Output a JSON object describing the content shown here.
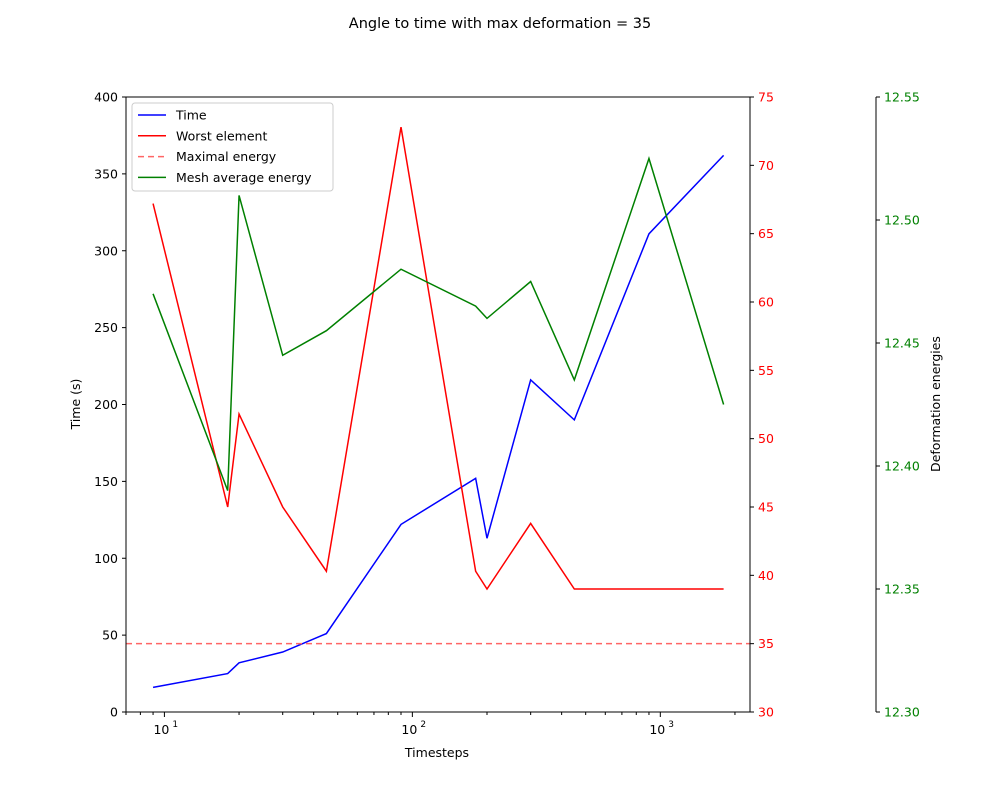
{
  "chart_data": {
    "type": "line",
    "title": "Angle to time with max deformation = 35",
    "xlabel": "Timesteps",
    "xscale": "log",
    "xlim": [
      7,
      2300
    ],
    "x_ticks": [
      10,
      100,
      1000
    ],
    "x_tick_labels": [
      "10",
      "10",
      "10"
    ],
    "x_tick_exponents": [
      "1",
      "2",
      "3"
    ],
    "axes": {
      "left": {
        "label": "Time (s)",
        "lim": [
          0,
          400
        ],
        "ticks": [
          0,
          50,
          100,
          150,
          200,
          250,
          300,
          350,
          400
        ],
        "tick_labels": [
          "0",
          "50",
          "100",
          "150",
          "200",
          "250",
          "300",
          "350",
          "400"
        ],
        "color": "#000000"
      },
      "right1": {
        "label": "",
        "lim": [
          30,
          75
        ],
        "ticks": [
          30,
          35,
          40,
          45,
          50,
          55,
          60,
          65,
          70,
          75
        ],
        "tick_labels": [
          "30",
          "35",
          "40",
          "45",
          "50",
          "55",
          "60",
          "65",
          "70",
          "75"
        ],
        "color": "#ff0000"
      },
      "right2": {
        "label": "Deformation energies",
        "lim": [
          12.3,
          12.55
        ],
        "ticks": [
          12.3,
          12.35,
          12.4,
          12.45,
          12.5,
          12.55
        ],
        "tick_labels": [
          "12.30",
          "12.35",
          "12.40",
          "12.45",
          "12.50",
          "12.55"
        ],
        "color": "#008000"
      }
    },
    "legend_position": "upper left",
    "series": [
      {
        "name": "Time",
        "axis": "left",
        "color": "#0000ff",
        "dashed": false,
        "x": [
          9,
          18,
          20,
          30,
          45,
          90,
          180,
          200,
          300,
          450,
          900,
          1800
        ],
        "y": [
          16,
          25,
          32,
          39,
          51,
          122,
          152,
          113,
          216,
          190,
          311,
          362
        ]
      },
      {
        "name": "Worst element",
        "axis": "right1",
        "color": "#ff0000",
        "dashed": false,
        "x": [
          9,
          18,
          20,
          30,
          45,
          90,
          180,
          200,
          300,
          450,
          900,
          1800
        ],
        "y": [
          67.2,
          45.0,
          51.8,
          45.0,
          40.3,
          72.8,
          40.3,
          39.0,
          43.8,
          39.0,
          39.0,
          39.0
        ]
      },
      {
        "name": "Maximal energy",
        "axis": "right1",
        "color": "#ff6666",
        "dashed": true,
        "hline": 35
      },
      {
        "name": "Mesh average energy",
        "axis": "right2",
        "color": "#008000",
        "dashed": false,
        "x": [
          9,
          18,
          20,
          30,
          45,
          90,
          180,
          200,
          300,
          450,
          900,
          1800
        ],
        "y": [
          12.47,
          12.39,
          12.51,
          12.445,
          12.455,
          12.48,
          12.465,
          12.46,
          12.475,
          12.435,
          12.525,
          12.425
        ]
      }
    ]
  }
}
